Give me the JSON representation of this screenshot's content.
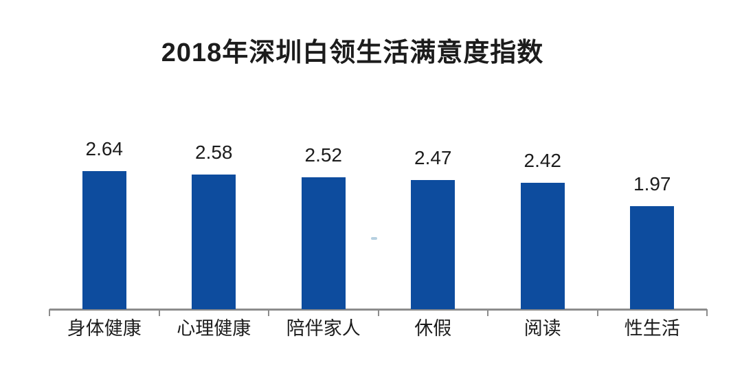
{
  "colors": {
    "background": "#FFFFFF",
    "bar": "#0D4C9E",
    "axis": "#8C8C8C",
    "text": "#1C1C1C"
  },
  "chart_data": {
    "type": "bar",
    "title": "2018年深圳白领生活满意度指数",
    "categories": [
      "身体健康",
      "心理健康",
      "陪伴家人",
      "休假",
      "阅读",
      "性生活"
    ],
    "values": [
      2.64,
      2.58,
      2.52,
      2.47,
      2.42,
      1.97
    ],
    "value_labels": [
      "2.64",
      "2.58",
      "2.52",
      "2.47",
      "2.42",
      "1.97"
    ],
    "xlabel": "",
    "ylabel": "",
    "ylim": [
      0,
      3
    ],
    "grid": false,
    "legend": null,
    "orientation": "vertical",
    "data_labels_position": "above-bars"
  }
}
